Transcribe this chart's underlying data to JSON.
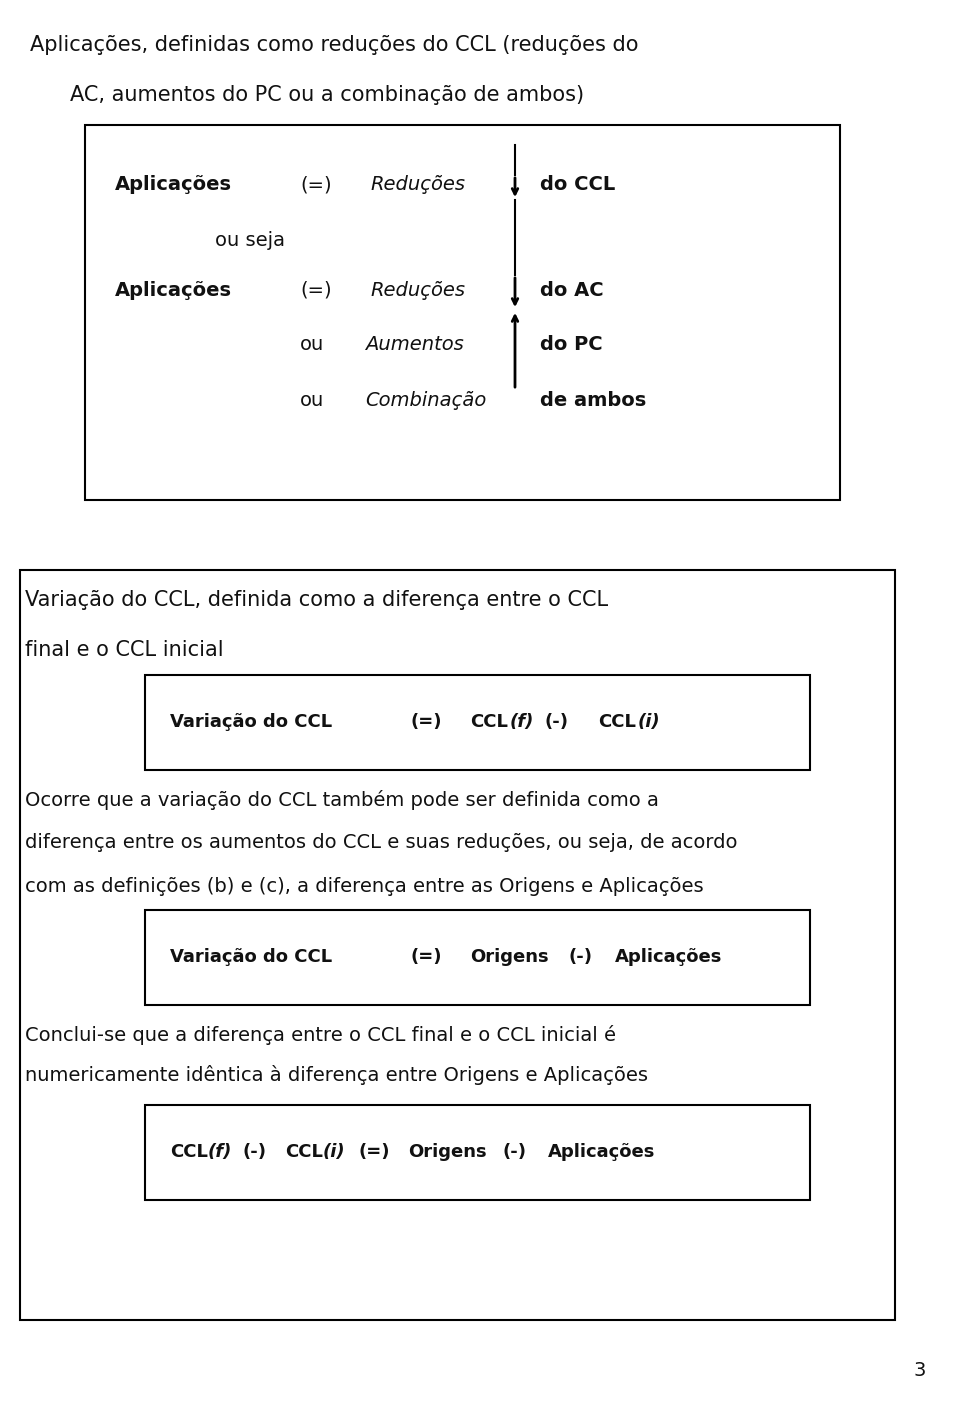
{
  "bg_color": "#ffffff",
  "text_color": "#111111",
  "page_number": "3",
  "s1_line1": "Aplicações, definidas como reduções do CCL (reduções do",
  "s1_line2": "AC, aumentos do PC ou a combinação de ambos)",
  "s2_line1": "Variação do CCL, definida como a diferença entre o CCL",
  "s2_line2": "final e o CCL inicial",
  "s3_line1": "Ocorre que a variação do CCL também pode ser definida como a",
  "s3_line2": "diferença entre os aumentos do CCL e suas reduções, ou seja, de acordo",
  "s3_line3": "com as definições (b) e (c), a diferença entre as Origens e Aplicações",
  "s4_line1": "Conclui-se que a diferença entre o CCL final e o CCL inicial é",
  "s4_line2": "numericamente idêntica à diferença entre Origens e Aplicações"
}
